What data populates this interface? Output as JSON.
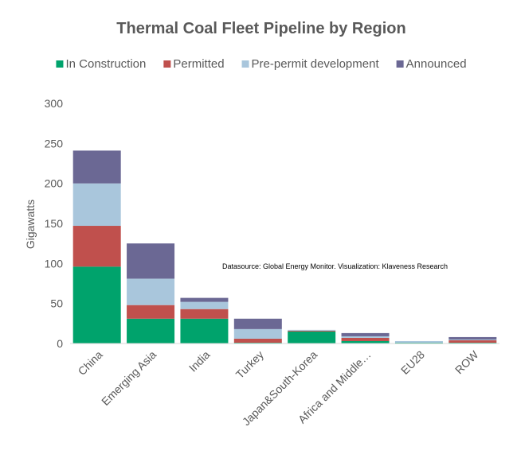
{
  "chart_data": {
    "type": "bar",
    "stacked": true,
    "title": "Thermal Coal Fleet Pipeline by Region",
    "ylabel": "Gigawatts",
    "xlabel": "",
    "ylim": [
      0,
      300
    ],
    "yticks": [
      0,
      50,
      100,
      150,
      200,
      250,
      300
    ],
    "grid": false,
    "legend_position": "top",
    "annotation": "Datasource: Global Energy Monitor. Visualization: Klaveness Research",
    "categories": [
      "China",
      "Emerging Asia",
      "India",
      "Turkey",
      "Japan&South-Korea",
      "Africa and Middle…",
      "EU28",
      "ROW"
    ],
    "series": [
      {
        "name": "In Construction",
        "color": "#00a36c",
        "values": [
          96,
          31,
          31,
          1,
          15,
          3,
          1,
          1
        ]
      },
      {
        "name": "Permitted",
        "color": "#c0504d",
        "values": [
          51,
          17,
          12,
          5,
          1,
          4,
          0,
          3
        ]
      },
      {
        "name": "Pre-permit development",
        "color": "#a9c6dc",
        "values": [
          53,
          33,
          9,
          12,
          1,
          2,
          2,
          1
        ]
      },
      {
        "name": "Announced",
        "color": "#6b6894",
        "values": [
          41,
          44,
          5,
          13,
          0,
          4,
          0,
          3
        ]
      }
    ]
  }
}
